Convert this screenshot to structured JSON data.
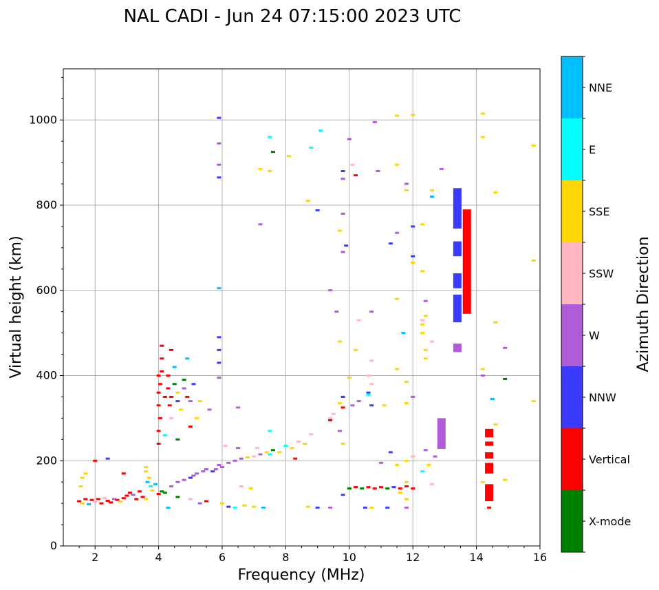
{
  "chart_data": {
    "type": "scatter",
    "title": "NAL CADI - Jun 24 07:15:00 2023 UTC",
    "xlabel": "Frequency (MHz)",
    "ylabel": "Virtual height (km)",
    "xlim": [
      1,
      16
    ],
    "ylim": [
      0,
      1120
    ],
    "x_ticks": [
      2,
      4,
      6,
      8,
      10,
      12,
      14,
      16
    ],
    "y_ticks": [
      0,
      200,
      400,
      600,
      800,
      1000
    ],
    "grid": true,
    "colorbar": {
      "title": "Azimuth Direction",
      "categories": [
        {
          "name": "X-mode",
          "color": "#008000"
        },
        {
          "name": "Vertical",
          "color": "#ff0000"
        },
        {
          "name": "NNW",
          "color": "#3b3bff"
        },
        {
          "name": "W",
          "color": "#b05bd8"
        },
        {
          "name": "SSW",
          "color": "#ffb6c1"
        },
        {
          "name": "SSE",
          "color": "#ffd700"
        },
        {
          "name": "E",
          "color": "#00ffff"
        },
        {
          "name": "NNE",
          "color": "#00bfff"
        }
      ]
    },
    "points": [
      [
        1.5,
        105,
        "Vertical"
      ],
      [
        1.6,
        100,
        "SSE"
      ],
      [
        1.7,
        110,
        "Vertical"
      ],
      [
        1.8,
        98,
        "NNE"
      ],
      [
        1.9,
        108,
        "Vertical"
      ],
      [
        2.0,
        104,
        "SSW"
      ],
      [
        2.1,
        110,
        "Vertical"
      ],
      [
        2.2,
        100,
        "Vertical"
      ],
      [
        2.3,
        112,
        "SSW"
      ],
      [
        2.4,
        106,
        "Vertical"
      ],
      [
        2.5,
        102,
        "Vertical"
      ],
      [
        2.6,
        110,
        "W"
      ],
      [
        2.7,
        108,
        "Vertical"
      ],
      [
        2.8,
        104,
        "SSE"
      ],
      [
        2.9,
        112,
        "Vertical"
      ],
      [
        3.0,
        118,
        "Vertical"
      ],
      [
        3.1,
        125,
        "Vertical"
      ],
      [
        3.2,
        120,
        "W"
      ],
      [
        3.3,
        110,
        "Vertical"
      ],
      [
        3.4,
        128,
        "Vertical"
      ],
      [
        3.5,
        115,
        "Vertical"
      ],
      [
        3.6,
        110,
        "SSE"
      ],
      [
        3.65,
        150,
        "NNE"
      ],
      [
        3.7,
        160,
        "SSE"
      ],
      [
        3.75,
        140,
        "E"
      ],
      [
        3.8,
        130,
        "SSE"
      ],
      [
        3.9,
        145,
        "NNE"
      ],
      [
        4.0,
        122,
        "Vertical"
      ],
      [
        4.1,
        128,
        "X-mode"
      ],
      [
        4.2,
        125,
        "X-mode"
      ],
      [
        1.55,
        140,
        "SSE"
      ],
      [
        1.6,
        160,
        "SSE"
      ],
      [
        2.0,
        200,
        "Vertical"
      ],
      [
        2.4,
        205,
        "NNW"
      ],
      [
        2.9,
        170,
        "Vertical"
      ],
      [
        3.6,
        185,
        "SSE"
      ],
      [
        3.6,
        175,
        "SSE"
      ],
      [
        1.7,
        170,
        "SSE"
      ],
      [
        4.0,
        240,
        "Vertical"
      ],
      [
        4.0,
        270,
        "Vertical"
      ],
      [
        4.05,
        300,
        "Vertical"
      ],
      [
        4.0,
        330,
        "Vertical"
      ],
      [
        4.0,
        360,
        "Vertical"
      ],
      [
        4.05,
        380,
        "Vertical"
      ],
      [
        4.0,
        400,
        "Vertical"
      ],
      [
        4.1,
        410,
        "Vertical"
      ],
      [
        4.1,
        440,
        "Vertical"
      ],
      [
        4.1,
        470,
        "Vertical"
      ],
      [
        4.2,
        350,
        "Vertical"
      ],
      [
        4.3,
        370,
        "Vertical"
      ],
      [
        4.3,
        400,
        "Vertical"
      ],
      [
        4.35,
        330,
        "Vertical"
      ],
      [
        4.4,
        350,
        "Vertical"
      ],
      [
        4.4,
        300,
        "SSW"
      ],
      [
        4.5,
        380,
        "X-mode"
      ],
      [
        4.6,
        340,
        "NNW"
      ],
      [
        4.6,
        360,
        "SSE"
      ],
      [
        4.7,
        320,
        "SSE"
      ],
      [
        4.8,
        390,
        "X-mode"
      ],
      [
        4.8,
        370,
        "W"
      ],
      [
        4.9,
        350,
        "Vertical"
      ],
      [
        5.0,
        340,
        "W"
      ],
      [
        5.1,
        380,
        "NNW"
      ],
      [
        5.3,
        340,
        "SSE"
      ],
      [
        4.9,
        440,
        "NNE"
      ],
      [
        4.5,
        420,
        "NNE"
      ],
      [
        4.4,
        460,
        "Vertical"
      ],
      [
        4.2,
        260,
        "E"
      ],
      [
        4.6,
        250,
        "X-mode"
      ],
      [
        5.2,
        300,
        "SSE"
      ],
      [
        5.6,
        320,
        "W"
      ],
      [
        5.0,
        280,
        "Vertical"
      ],
      [
        4.4,
        140,
        "W"
      ],
      [
        4.6,
        150,
        "W"
      ],
      [
        4.8,
        155,
        "W"
      ],
      [
        5.0,
        160,
        "NNW"
      ],
      [
        5.1,
        165,
        "W"
      ],
      [
        5.2,
        170,
        "W"
      ],
      [
        5.4,
        175,
        "W"
      ],
      [
        5.5,
        180,
        "W"
      ],
      [
        5.7,
        175,
        "NNW"
      ],
      [
        5.8,
        180,
        "W"
      ],
      [
        5.9,
        190,
        "W"
      ],
      [
        6.0,
        185,
        "W"
      ],
      [
        6.2,
        195,
        "W"
      ],
      [
        6.4,
        200,
        "W"
      ],
      [
        6.6,
        205,
        "W"
      ],
      [
        6.8,
        208,
        "SSE"
      ],
      [
        7.0,
        210,
        "SSW"
      ],
      [
        7.2,
        215,
        "W"
      ],
      [
        7.4,
        220,
        "SSE"
      ],
      [
        7.6,
        225,
        "X-mode"
      ],
      [
        7.8,
        220,
        "SSE"
      ],
      [
        8.0,
        235,
        "E"
      ],
      [
        8.2,
        230,
        "SSE"
      ],
      [
        8.4,
        245,
        "SSW"
      ],
      [
        8.6,
        240,
        "SSE"
      ],
      [
        6.1,
        235,
        "SSW"
      ],
      [
        6.5,
        230,
        "W"
      ],
      [
        7.1,
        230,
        "SSW"
      ],
      [
        7.5,
        215,
        "E"
      ],
      [
        8.3,
        205,
        "Vertical"
      ],
      [
        4.6,
        115,
        "X-mode"
      ],
      [
        5.0,
        110,
        "SSW"
      ],
      [
        5.3,
        100,
        "W"
      ],
      [
        5.5,
        105,
        "Vertical"
      ],
      [
        6.0,
        100,
        "SSE"
      ],
      [
        6.2,
        92,
        "NNW"
      ],
      [
        6.4,
        90,
        "E"
      ],
      [
        6.7,
        95,
        "SSE"
      ],
      [
        7.0,
        92,
        "SSE"
      ],
      [
        7.3,
        90,
        "NNE"
      ],
      [
        6.6,
        140,
        "SSW"
      ],
      [
        6.9,
        135,
        "SSE"
      ],
      [
        4.3,
        90,
        "NNE"
      ],
      [
        8.7,
        92,
        "SSE"
      ],
      [
        9.0,
        90,
        "NNW"
      ],
      [
        9.4,
        90,
        "W"
      ],
      [
        9.8,
        120,
        "NNW"
      ],
      [
        10.0,
        135,
        "X-mode"
      ],
      [
        10.2,
        138,
        "Vertical"
      ],
      [
        10.4,
        135,
        "X-mode"
      ],
      [
        10.6,
        138,
        "Vertical"
      ],
      [
        10.8,
        135,
        "Vertical"
      ],
      [
        11.0,
        138,
        "Vertical"
      ],
      [
        11.2,
        135,
        "X-mode"
      ],
      [
        11.4,
        138,
        "NNW"
      ],
      [
        11.6,
        135,
        "Vertical"
      ],
      [
        11.8,
        140,
        "Vertical"
      ],
      [
        12.0,
        135,
        "Vertical"
      ],
      [
        11.6,
        125,
        "SSE"
      ],
      [
        11.8,
        110,
        "SSE"
      ],
      [
        11.8,
        150,
        "SSE"
      ],
      [
        11.8,
        200,
        "SSE"
      ],
      [
        12.0,
        210,
        "SSW"
      ],
      [
        11.5,
        190,
        "SSE"
      ],
      [
        11.0,
        195,
        "W"
      ],
      [
        11.3,
        220,
        "NNW"
      ],
      [
        10.7,
        90,
        "SSE"
      ],
      [
        10.5,
        90,
        "NNW"
      ],
      [
        11.2,
        90,
        "NNW"
      ],
      [
        11.8,
        90,
        "W"
      ],
      [
        12.3,
        175,
        "E"
      ],
      [
        12.5,
        190,
        "SSE"
      ],
      [
        12.7,
        210,
        "W"
      ],
      [
        12.6,
        145,
        "SSW"
      ],
      [
        12.4,
        225,
        "W"
      ],
      [
        8.8,
        262,
        "SSW"
      ],
      [
        9.4,
        300,
        "SSW"
      ],
      [
        9.5,
        310,
        "SSW"
      ],
      [
        9.4,
        295,
        "Vertical"
      ],
      [
        9.7,
        270,
        "W"
      ],
      [
        9.8,
        240,
        "SSE"
      ],
      [
        9.8,
        350,
        "NNW"
      ],
      [
        9.7,
        335,
        "SSE"
      ],
      [
        9.8,
        325,
        "Vertical"
      ],
      [
        10.0,
        395,
        "SSE"
      ],
      [
        10.1,
        330,
        "W"
      ],
      [
        10.3,
        340,
        "W"
      ],
      [
        10.6,
        360,
        "NNW"
      ],
      [
        10.6,
        355,
        "E"
      ],
      [
        10.7,
        380,
        "SSW"
      ],
      [
        10.7,
        330,
        "NNW"
      ],
      [
        10.6,
        400,
        "SSW"
      ],
      [
        11.1,
        330,
        "SSE"
      ],
      [
        11.8,
        335,
        "SSE"
      ],
      [
        11.8,
        385,
        "SSE"
      ],
      [
        11.5,
        415,
        "SSE"
      ],
      [
        12.0,
        350,
        "W"
      ],
      [
        12.4,
        440,
        "SSE"
      ],
      [
        12.4,
        460,
        "SSE"
      ],
      [
        12.6,
        480,
        "SSW"
      ],
      [
        9.7,
        480,
        "SSE"
      ],
      [
        10.2,
        460,
        "SSE"
      ],
      [
        10.7,
        435,
        "SSW"
      ],
      [
        9.6,
        550,
        "W"
      ],
      [
        10.3,
        530,
        "SSW"
      ],
      [
        10.7,
        550,
        "W"
      ],
      [
        11.7,
        500,
        "NNE"
      ],
      [
        11.5,
        580,
        "SSE"
      ],
      [
        12.3,
        500,
        "SSE"
      ],
      [
        12.3,
        520,
        "SSE"
      ],
      [
        12.3,
        530,
        "SSW"
      ],
      [
        12.4,
        540,
        "SSE"
      ],
      [
        12.4,
        575,
        "W"
      ],
      [
        9.4,
        600,
        "W"
      ],
      [
        9.8,
        690,
        "W"
      ],
      [
        9.9,
        705,
        "NNW"
      ],
      [
        9.8,
        780,
        "W"
      ],
      [
        9.7,
        740,
        "SSE"
      ],
      [
        11.3,
        710,
        "NNW"
      ],
      [
        11.5,
        735,
        "W"
      ],
      [
        12.0,
        750,
        "NNW"
      ],
      [
        12.0,
        680,
        "NNW"
      ],
      [
        12.0,
        665,
        "SSE"
      ],
      [
        12.3,
        645,
        "SSE"
      ],
      [
        12.3,
        755,
        "SSE"
      ],
      [
        12.6,
        820,
        "NNE"
      ],
      [
        12.6,
        835,
        "SSE"
      ],
      [
        11.8,
        835,
        "SSE"
      ],
      [
        11.8,
        850,
        "W"
      ],
      [
        12.9,
        885,
        "W"
      ],
      [
        8.7,
        810,
        "SSE"
      ],
      [
        9.0,
        788,
        "NNW"
      ],
      [
        8.1,
        915,
        "SSE"
      ],
      [
        8.8,
        935,
        "E"
      ],
      [
        9.1,
        975,
        "E"
      ],
      [
        9.8,
        880,
        "NNW"
      ],
      [
        9.8,
        862,
        "W"
      ],
      [
        10.0,
        955,
        "W"
      ],
      [
        10.2,
        870,
        "Vertical"
      ],
      [
        10.1,
        895,
        "SSW"
      ],
      [
        10.8,
        995,
        "W"
      ],
      [
        10.9,
        880,
        "W"
      ],
      [
        11.5,
        1010,
        "SSE"
      ],
      [
        11.5,
        895,
        "SSE"
      ],
      [
        12.0,
        1012,
        "SSE"
      ],
      [
        7.6,
        925,
        "X-mode"
      ],
      [
        7.5,
        960,
        "E"
      ],
      [
        7.5,
        880,
        "SSE"
      ],
      [
        7.2,
        755,
        "W"
      ],
      [
        7.2,
        885,
        "SSE"
      ],
      [
        5.9,
        1005,
        "NNW"
      ],
      [
        5.9,
        945,
        "W"
      ],
      [
        5.9,
        895,
        "W"
      ],
      [
        5.9,
        865,
        "NNW"
      ],
      [
        5.9,
        605,
        "NNE"
      ],
      [
        5.9,
        490,
        "NNW"
      ],
      [
        5.9,
        460,
        "NNW"
      ],
      [
        5.9,
        430,
        "NNW"
      ],
      [
        5.9,
        395,
        "W"
      ],
      [
        6.5,
        325,
        "W"
      ],
      [
        7.5,
        270,
        "E"
      ],
      [
        14.2,
        1015,
        "SSE"
      ],
      [
        14.2,
        960,
        "SSE"
      ],
      [
        14.6,
        830,
        "SSE"
      ],
      [
        15.8,
        940,
        "SSE"
      ],
      [
        15.8,
        670,
        "SSE"
      ],
      [
        14.6,
        525,
        "SSE"
      ],
      [
        14.2,
        415,
        "SSE"
      ],
      [
        14.2,
        400,
        "W"
      ],
      [
        14.5,
        345,
        "NNE"
      ],
      [
        14.9,
        465,
        "W"
      ],
      [
        14.9,
        392,
        "X-mode"
      ],
      [
        15.8,
        340,
        "SSE"
      ],
      [
        14.6,
        285,
        "SSE"
      ],
      [
        14.9,
        155,
        "SSE"
      ],
      [
        14.2,
        150,
        "SSE"
      ],
      [
        14.4,
        90,
        "Vertical"
      ]
    ],
    "bars": [
      [
        13.4,
        455,
        475,
        "W"
      ],
      [
        13.4,
        525,
        590,
        "NNW"
      ],
      [
        13.4,
        605,
        640,
        "NNW"
      ],
      [
        13.4,
        680,
        715,
        "NNW"
      ],
      [
        13.4,
        745,
        840,
        "NNW"
      ],
      [
        13.7,
        545,
        790,
        "Vertical"
      ],
      [
        12.9,
        228,
        300,
        "W"
      ],
      [
        14.4,
        105,
        145,
        "Vertical"
      ],
      [
        14.4,
        170,
        195,
        "Vertical"
      ],
      [
        14.4,
        205,
        220,
        "Vertical"
      ],
      [
        14.4,
        235,
        245,
        "Vertical"
      ],
      [
        14.4,
        255,
        275,
        "Vertical"
      ]
    ]
  }
}
